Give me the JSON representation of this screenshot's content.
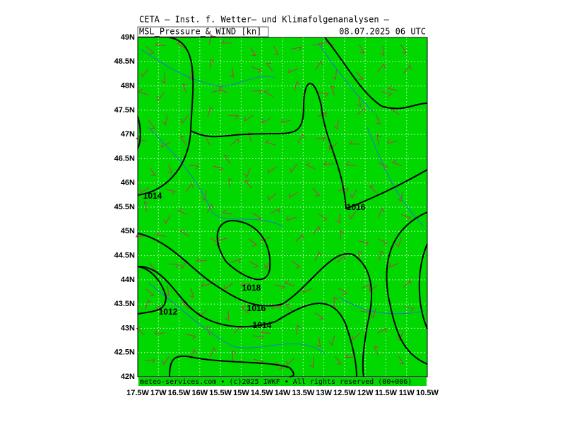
{
  "header": {
    "title": "CETA – Inst. f. Wetter– und Klimafolgenanalysen –",
    "product": "MSL_Pressure_&_WIND [kn]",
    "date": "08.07.2025 06 UTC"
  },
  "axes": {
    "lat_labels": [
      "49N",
      "48.5N",
      "48N",
      "47.5N",
      "47N",
      "46.5N",
      "46N",
      "45.5N",
      "45N",
      "44.5N",
      "44N",
      "43.5N",
      "43N",
      "42.5N",
      "42N"
    ],
    "lon_labels": [
      "17.5W",
      "17W",
      "16.5W",
      "16W",
      "15.5W",
      "15W",
      "14.5W",
      "14W",
      "13.5W",
      "13W",
      "12.5W",
      "12W",
      "11.5W",
      "11W",
      "10.5W"
    ]
  },
  "isobar_labels": [
    "1014",
    "1016",
    "1018",
    "1016",
    "1014",
    "1012"
  ],
  "footer": "meteo-services.com • (c)2025 IWKF • All rights reserved (00+006)"
}
